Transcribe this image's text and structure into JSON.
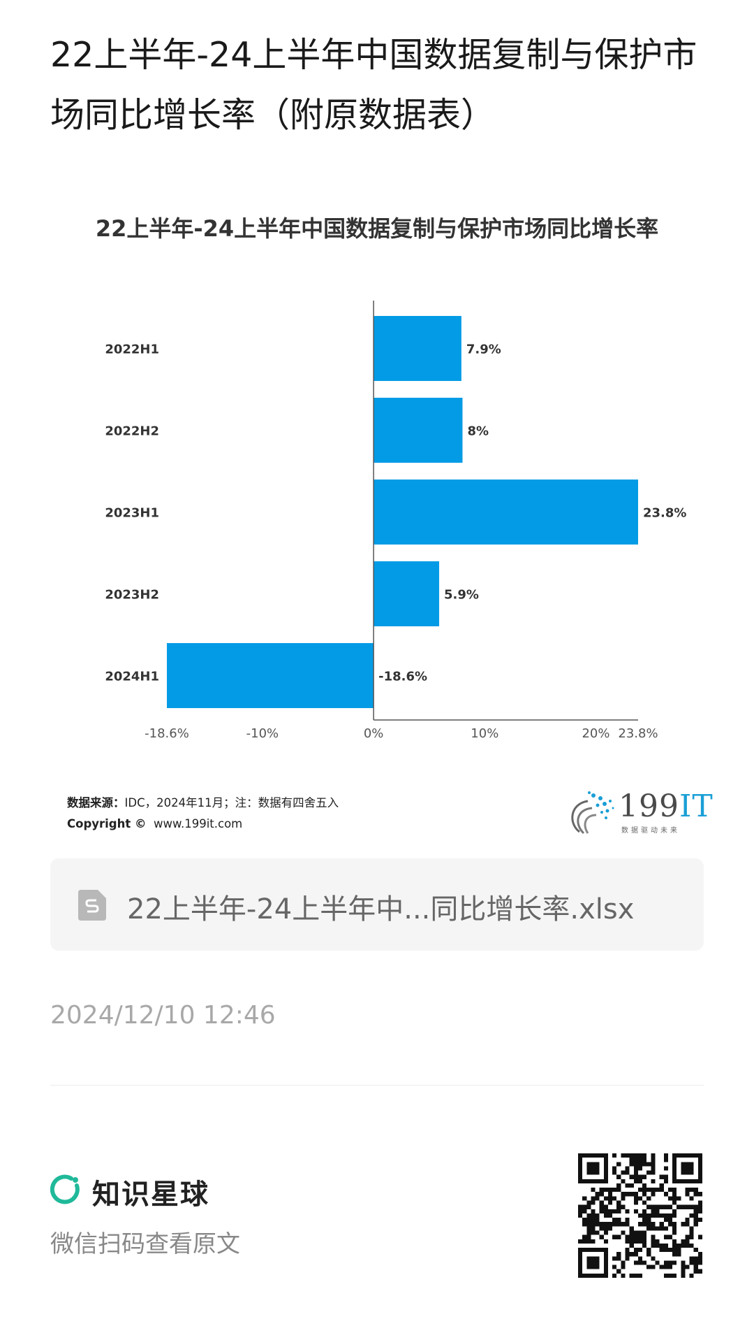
{
  "post_title": "22上半年-24上半年中国数据复制与保护市场同比增长率（附原数据表）",
  "chart_data": {
    "type": "bar",
    "orientation": "horizontal",
    "title": "22上半年-24上半年中国数据复制与保护市场同比增长率",
    "categories": [
      "2022H1",
      "2022H2",
      "2023H1",
      "2023H2",
      "2024H1"
    ],
    "values": [
      7.9,
      8,
      23.8,
      5.9,
      -18.6
    ],
    "data_labels": [
      "7.9%",
      "8%",
      "23.8%",
      "5.9%",
      "-18.6%"
    ],
    "xlim": [
      -18.6,
      23.8
    ],
    "x_ticks": [
      -18.6,
      -10,
      0,
      10,
      20,
      23.8
    ],
    "x_tick_labels": [
      "-18.6%",
      "-10%",
      "0%",
      "10%",
      "20%",
      "23.8%"
    ],
    "bar_color": "#039be5",
    "grid": false,
    "legend": "none"
  },
  "source": {
    "label": "数据来源：",
    "text": "IDC，2024年11月；注：数据有四舍五入",
    "copyright_label": "Copyright ©",
    "copyright_url": "www.199it.com"
  },
  "logo": {
    "number": "199",
    "suffix": "IT",
    "slogan": "数据驱动未来"
  },
  "file": {
    "icon": "spreadsheet-file-icon",
    "name": "22上半年-24上半年中...同比增长率.xlsx"
  },
  "timestamp": "2024/12/10 12:46",
  "brand": {
    "icon": "zsxq-logo-icon",
    "name": "知识星球",
    "accent": "#1fb99a"
  },
  "scan_text": "微信扫码查看原文"
}
